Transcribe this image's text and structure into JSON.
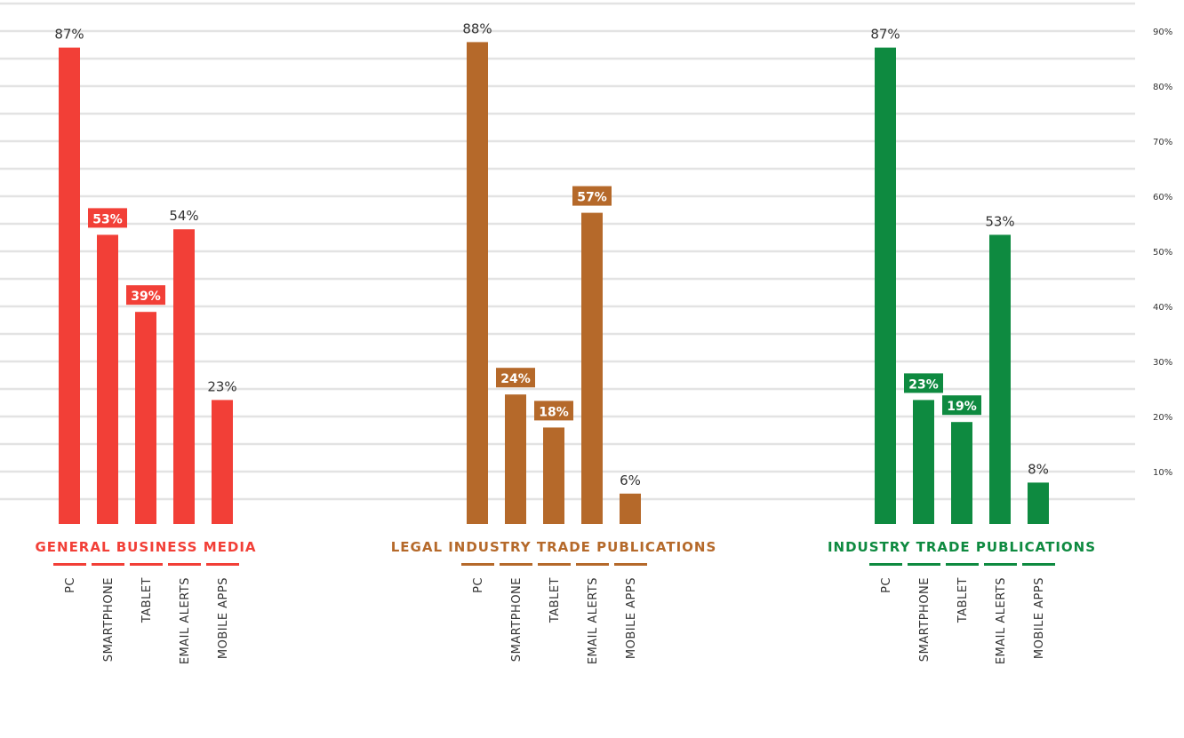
{
  "chart_data": {
    "type": "bar",
    "y_axis": {
      "position": "right",
      "range": [
        0,
        95
      ],
      "ticks": [
        "10%",
        "20%",
        "30%",
        "40%",
        "50%",
        "60%",
        "70%",
        "80%",
        "90%"
      ],
      "grid": true
    },
    "categories": [
      "PC",
      "SMARTPHONE",
      "TABLET",
      "EMAIL ALERTS",
      "MOBILE APPS"
    ],
    "groups": [
      {
        "title": "GENERAL BUSINESS MEDIA",
        "color": "#f23f37",
        "values": [
          87,
          53,
          39,
          54,
          23
        ],
        "labels": [
          "87%",
          "53%",
          "39%",
          "54%",
          "23%"
        ],
        "highlight": [
          false,
          true,
          true,
          false,
          false
        ]
      },
      {
        "title": "LEGAL INDUSTRY TRADE PUBLICATIONS",
        "color": "#b5692a",
        "values": [
          88,
          24,
          18,
          57,
          6
        ],
        "labels": [
          "88%",
          "24%",
          "18%",
          "57%",
          "6%"
        ],
        "highlight": [
          false,
          true,
          true,
          true,
          false
        ]
      },
      {
        "title": "INDUSTRY TRADE PUBLICATIONS",
        "color": "#0e8a40",
        "values": [
          87,
          23,
          19,
          53,
          8
        ],
        "labels": [
          "87%",
          "23%",
          "19%",
          "53%",
          "8%"
        ],
        "highlight": [
          false,
          true,
          true,
          false,
          false
        ]
      }
    ]
  }
}
